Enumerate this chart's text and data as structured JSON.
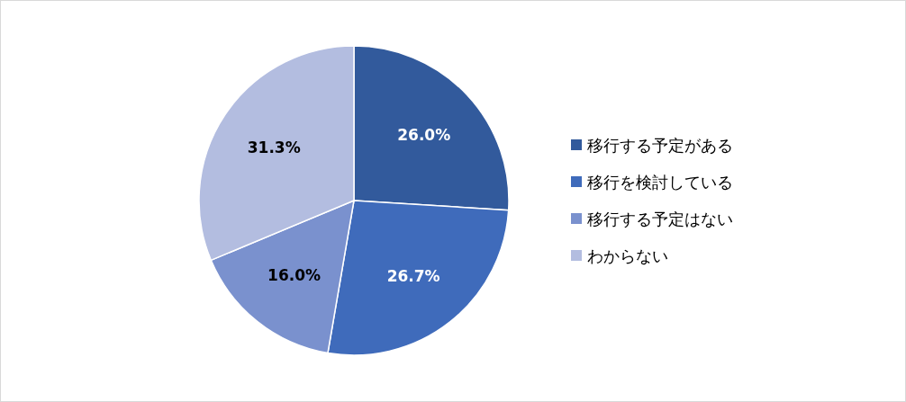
{
  "chart_data": {
    "type": "pie",
    "categories": [
      "移行する予定がある",
      "移行を検討している",
      "移行する予定はない",
      "わからない"
    ],
    "values": [
      26.0,
      26.7,
      16.0,
      31.3
    ],
    "value_labels": [
      "26.0%",
      "26.7%",
      "16.0%",
      "31.3%"
    ],
    "colors": [
      "#325a9c",
      "#3f6bbb",
      "#7a91ce",
      "#b3bde0"
    ],
    "legend": "right"
  }
}
